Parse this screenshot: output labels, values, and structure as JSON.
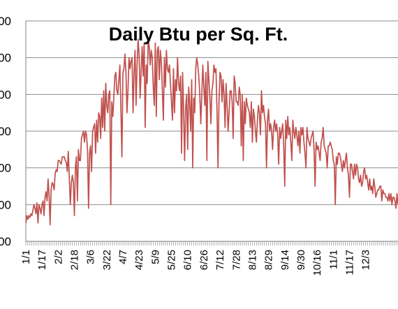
{
  "chart_data": {
    "type": "line",
    "title": "Daily Btu per Sq. Ft.",
    "x_tick_labels": [
      "1/1",
      "1/17",
      "2/2",
      "2/18",
      "3/6",
      "3/22",
      "4/7",
      "4/23",
      "5/9",
      "5/25",
      "6/10",
      "6/26",
      "7/12",
      "7/28",
      "8/13",
      "8/29",
      "9/14",
      "9/30",
      "10/16",
      "11/1",
      "11/17",
      "12/3"
    ],
    "y_tick_labels": [
      "000",
      "000",
      "000",
      "000",
      "000",
      "000",
      "000"
    ],
    "grid": true,
    "series": [
      {
        "color": "#c0504d",
        "values": [
          500,
          700,
          600,
          700,
          650,
          750,
          700,
          850,
          1000,
          900,
          750,
          1050,
          500,
          1000,
          900,
          750,
          1000,
          1100,
          700,
          1200,
          1350,
          1100,
          1700,
          1250,
          450,
          1400,
          1600,
          1550,
          1400,
          1850,
          1950,
          1900,
          2200,
          2200,
          2150,
          2100,
          2300,
          2300,
          2300,
          2200,
          2150,
          1900,
          2450,
          1700,
          1000,
          1600,
          1800,
          1600,
          700,
          2000,
          2300,
          1100,
          2500,
          2200,
          2200,
          2800,
          2900,
          3000,
          2700,
          3000,
          2900,
          2500,
          900,
          2400,
          2600,
          1900,
          3000,
          3100,
          3200,
          2400,
          3300,
          2700,
          3500,
          3400,
          2800,
          3900,
          3100,
          4100,
          3000,
          4300,
          3700,
          3500,
          4000,
          4100,
          1000,
          3800,
          3400,
          3900,
          4500,
          4600,
          4100,
          4000,
          4400,
          4800,
          3600,
          2300,
          4600,
          4700,
          5100,
          4600,
          3500,
          4100,
          5000,
          4700,
          4900,
          5000,
          3500,
          4600,
          5200,
          3700,
          4800,
          5500,
          5100,
          3900,
          4600,
          5300,
          4500,
          5400,
          3100,
          4800,
          4300,
          5500,
          5300,
          4800,
          5200,
          5000,
          4200,
          3700,
          5400,
          3400,
          5200,
          5300,
          4400,
          5200,
          4900,
          4100,
          3300,
          5000,
          4200,
          5200,
          4700,
          4600,
          4800,
          4300,
          3800,
          3300,
          4700,
          3500,
          4400,
          4100,
          5000,
          4300,
          4100,
          4500,
          2400,
          4600,
          3600,
          2200,
          3600,
          4000,
          2500,
          4200,
          3800,
          3000,
          4400,
          2000,
          3900,
          3500,
          4700,
          5000,
          4800,
          4500,
          4000,
          3200,
          4000,
          4800,
          4200,
          3700,
          4600,
          2200,
          4900,
          4400,
          3900,
          3200,
          4100,
          4300,
          4800,
          4600,
          4700,
          3600,
          2000,
          3800,
          4600,
          4500,
          3800,
          4400,
          4000,
          3100,
          4300,
          3700,
          3000,
          3500,
          4100,
          4100,
          3800,
          2800,
          4500,
          4300,
          3800,
          3800,
          3700,
          4200,
          4000,
          2600,
          4000,
          2200,
          3800,
          3200,
          3900,
          3700,
          3600,
          3500,
          3100,
          3800,
          2700,
          3600,
          3400,
          3000,
          2700,
          3300,
          3700,
          3500,
          2900,
          4100,
          3500,
          3700,
          3400,
          3200,
          2000,
          3300,
          3600,
          3000,
          3200,
          3000,
          2500,
          3100,
          3300,
          3000,
          3200,
          2900,
          2100,
          3100,
          2800,
          3000,
          3200,
          2600,
          1500,
          3300,
          2800,
          3400,
          2900,
          3100,
          2700,
          2200,
          3300,
          3000,
          2800,
          3100,
          2900,
          2600,
          3000,
          2400,
          3100,
          2900,
          3100,
          2700,
          2400,
          2000,
          3100,
          2800,
          2700,
          2600,
          2800,
          2900,
          3000,
          2500,
          1500,
          2700,
          2500,
          2600,
          2400,
          2200,
          2700,
          2800,
          3100,
          2600,
          2500,
          2400,
          2000,
          2600,
          2600,
          2700,
          2600,
          2500,
          2200,
          2100,
          1000,
          2300,
          2100,
          2400,
          2400,
          2300,
          2100,
          1900,
          2200,
          2000,
          2200,
          2400,
          2000,
          1800,
          1200,
          2100,
          2100,
          1900,
          1700,
          2100,
          1800,
          2100,
          2000,
          1700,
          1600,
          1800,
          1500,
          1600,
          1900,
          2000,
          1700,
          1800,
          1600,
          1400,
          1700,
          1400,
          1500,
          1300,
          1700,
          1500,
          1200,
          1300,
          1400,
          1400,
          1500,
          1500,
          1100,
          1400,
          1300,
          1300,
          1200,
          1200,
          1100,
          1300,
          1100,
          1300,
          1000,
          1200,
          1200,
          1100,
          900,
          1300,
          1000
        ]
      }
    ]
  }
}
